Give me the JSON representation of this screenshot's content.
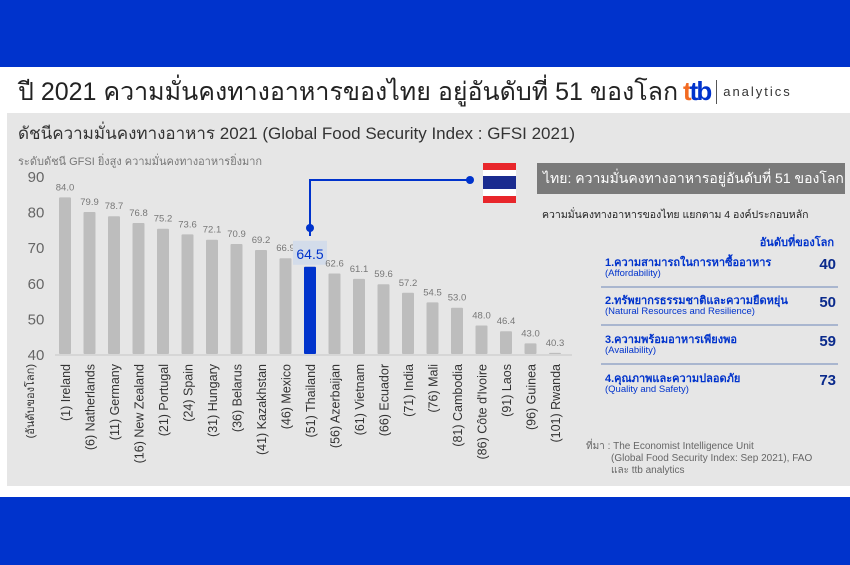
{
  "header": {
    "title": "ปี 2021 ความมั่นคงทางอาหารของไทย อยู่อันดับที่ 51 ของโลก",
    "logo_mark": "ttb",
    "logo_word": "analytics"
  },
  "colors": {
    "brand_blue": "#0033cc",
    "bar_gray": "#bdbdbd",
    "highlight": "#0033cc"
  },
  "chart_data": {
    "type": "bar",
    "title": "ดัชนีความมั่นคงทางอาหาร 2021 (Global Food Security Index : GFSI 2021)",
    "ylabel": "ระดับดัชนี GFSI ยิ่งสูง ความมั่นคงทางอาหารยิ่งมาก",
    "xlabel": "(อันดับของโลก)",
    "ylim": [
      40,
      90
    ],
    "yticks": [
      "40",
      "50",
      "60",
      "70",
      "80",
      "90"
    ],
    "categories": [
      "(1) Ireland",
      "(6) Natherlands",
      "(11) Germany",
      "(16) New Zealand",
      "(21) Portugal",
      "(24) Spain",
      "(31) Hungary",
      "(36) Belarus",
      "(41) Kazakhstan",
      "(46) Mexico",
      "(51) Thailand",
      "(56) Azerbaijan",
      "(61) Vietnam",
      "(66) Ecuador",
      "(71) India",
      "(76) Mali",
      "(81) Cambodia",
      "(86) Côte d'Ivoire",
      "(91) Laos",
      "(96) Guinea",
      "(101) Rwanda"
    ],
    "values": [
      84.0,
      79.9,
      78.7,
      76.8,
      75.2,
      73.6,
      72.1,
      70.9,
      69.2,
      66.9,
      64.5,
      62.6,
      61.1,
      59.6,
      57.2,
      54.5,
      53.0,
      48.0,
      46.4,
      43.0,
      40.3
    ],
    "highlight_index": 10,
    "grid": false
  },
  "callout": {
    "text": "ไทย: ความมั่นคงทางอาหารอยู่อันดับที่  51 ของโลก",
    "breakdown": "ความมั่นคงทางอาหารของไทย  แยกตาม 4 องค์ประกอบหลัก",
    "rank_header": "อันดับที่ของโลก"
  },
  "components": [
    {
      "th": "1.ความสามารถในการหาซื้ออาหาร",
      "en": "(Affordability)",
      "rank": "40"
    },
    {
      "th": "2.ทรัพยากรธรรมชาติและความยืดหยุ่น",
      "en": "(Natural Resources and Resilience)",
      "rank": "50"
    },
    {
      "th": "3.ความพร้อมอาหารเพียงพอ",
      "en": "(Availability)",
      "rank": "59"
    },
    {
      "th": "4.คุณภาพและความปลอดภัย",
      "en": "(Quality and Safety)",
      "rank": "73"
    }
  ],
  "source": [
    "ที่มา : The Economist Intelligence Unit",
    "(Global Food Security Index: Sep 2021), FAO",
    "และ ttb analytics"
  ]
}
